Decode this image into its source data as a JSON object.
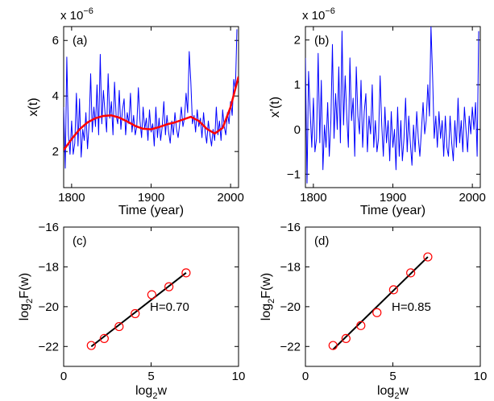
{
  "chart_data": [
    {
      "panel": "(a)",
      "type": "line",
      "xlabel": "Time (year)",
      "ylabel": "x(t)",
      "y_exponent_label": "x 10",
      "y_exponent_power": "−6",
      "xlim": [
        1790,
        2010
      ],
      "ylim": [
        0.7,
        6.5
      ],
      "xticks": [
        1800,
        1900,
        2000
      ],
      "yticks": [
        2,
        4,
        6
      ],
      "colors": {
        "data": "#0000ff",
        "trend": "#ff0000"
      },
      "series": [
        {
          "style": "thin-blue",
          "x": [
            1790,
            1792,
            1794,
            1796,
            1798,
            1800,
            1802,
            1804,
            1806,
            1808,
            1810,
            1812,
            1814,
            1816,
            1818,
            1820,
            1822,
            1824,
            1826,
            1828,
            1830,
            1832,
            1834,
            1836,
            1838,
            1840,
            1842,
            1844,
            1846,
            1848,
            1850,
            1852,
            1854,
            1856,
            1858,
            1860,
            1862,
            1864,
            1866,
            1868,
            1870,
            1872,
            1874,
            1876,
            1878,
            1880,
            1882,
            1884,
            1886,
            1888,
            1890,
            1892,
            1894,
            1896,
            1898,
            1900,
            1902,
            1904,
            1906,
            1908,
            1910,
            1912,
            1914,
            1916,
            1918,
            1920,
            1922,
            1924,
            1926,
            1928,
            1930,
            1932,
            1934,
            1936,
            1938,
            1940,
            1942,
            1944,
            1946,
            1948,
            1950,
            1952,
            1954,
            1956,
            1958,
            1960,
            1962,
            1964,
            1966,
            1968,
            1970,
            1972,
            1974,
            1976,
            1978,
            1980,
            1982,
            1984,
            1986,
            1988,
            1990,
            1992,
            1994,
            1996,
            1998,
            2000,
            2002,
            2004,
            2006,
            2008
          ],
          "y": [
            3.6,
            1.4,
            5.4,
            2.6,
            1.9,
            3.1,
            1.9,
            2.3,
            4.1,
            2.2,
            3.9,
            1.8,
            2.8,
            2.4,
            3.4,
            2.1,
            3.0,
            4.8,
            2.7,
            3.6,
            2.9,
            4.4,
            2.6,
            5.5,
            3.0,
            4.2,
            3.4,
            2.7,
            4.8,
            3.2,
            3.8,
            2.6,
            4.5,
            3.3,
            3.0,
            4.2,
            2.8,
            3.5,
            3.9,
            2.6,
            3.4,
            3.0,
            4.1,
            2.7,
            3.3,
            2.6,
            2.9,
            4.3,
            3.1,
            2.5,
            3.6,
            2.8,
            3.2,
            2.4,
            3.5,
            2.7,
            3.0,
            2.2,
            3.6,
            2.5,
            3.2,
            2.4,
            2.9,
            3.8,
            2.6,
            3.3,
            2.7,
            2.3,
            3.1,
            2.6,
            3.4,
            2.8,
            2.5,
            3.0,
            3.6,
            2.9,
            3.2,
            4.1,
            3.4,
            5.6,
            4.5,
            3.0,
            3.3,
            2.7,
            3.5,
            2.9,
            3.2,
            2.5,
            3.4,
            2.7,
            2.3,
            3.1,
            2.6,
            2.2,
            2.8,
            2.4,
            3.6,
            2.6,
            3.1,
            2.4,
            3.5,
            2.9,
            2.6,
            3.4,
            3.0,
            3.8,
            3.3,
            4.6,
            4.2,
            6.4
          ]
        },
        {
          "style": "thick-red",
          "x": [
            1790,
            1800,
            1810,
            1820,
            1830,
            1840,
            1850,
            1860,
            1870,
            1880,
            1890,
            1900,
            1910,
            1920,
            1930,
            1940,
            1950,
            1960,
            1970,
            1980,
            1990,
            2000,
            2010
          ],
          "y": [
            2.05,
            2.45,
            2.8,
            3.05,
            3.2,
            3.28,
            3.3,
            3.22,
            3.08,
            2.92,
            2.82,
            2.8,
            2.88,
            2.98,
            3.05,
            3.15,
            3.25,
            3.1,
            2.82,
            2.65,
            2.85,
            3.6,
            4.7
          ]
        }
      ]
    },
    {
      "panel": "(b)",
      "type": "line",
      "xlabel": "Time (year)",
      "ylabel": "x'(t)",
      "y_exponent_label": "x 10",
      "y_exponent_power": "−6",
      "xlim": [
        1790,
        2010
      ],
      "ylim": [
        -1.3,
        2.3
      ],
      "xticks": [
        1800,
        1900,
        2000
      ],
      "yticks": [
        -1,
        0,
        1,
        2
      ],
      "colors": {
        "data": "#0000ff"
      },
      "series": [
        {
          "style": "thin-blue",
          "x": [
            1790,
            1792,
            1794,
            1796,
            1798,
            1800,
            1802,
            1804,
            1806,
            1808,
            1810,
            1812,
            1814,
            1816,
            1818,
            1820,
            1822,
            1824,
            1826,
            1828,
            1830,
            1832,
            1834,
            1836,
            1838,
            1840,
            1842,
            1844,
            1846,
            1848,
            1850,
            1852,
            1854,
            1856,
            1858,
            1860,
            1862,
            1864,
            1866,
            1868,
            1870,
            1872,
            1874,
            1876,
            1878,
            1880,
            1882,
            1884,
            1886,
            1888,
            1890,
            1892,
            1894,
            1896,
            1898,
            1900,
            1902,
            1904,
            1906,
            1908,
            1910,
            1912,
            1914,
            1916,
            1918,
            1920,
            1922,
            1924,
            1926,
            1928,
            1930,
            1932,
            1934,
            1936,
            1938,
            1940,
            1942,
            1944,
            1946,
            1948,
            1950,
            1952,
            1954,
            1956,
            1958,
            1960,
            1962,
            1964,
            1966,
            1968,
            1970,
            1972,
            1974,
            1976,
            1978,
            1980,
            1982,
            1984,
            1986,
            1988,
            1990,
            1992,
            1994,
            1996,
            1998,
            2000,
            2002,
            2004,
            2006,
            2008
          ],
          "y": [
            1.6,
            -1.2,
            1.3,
            0.4,
            -0.4,
            0.7,
            -0.5,
            -0.2,
            1.7,
            -0.3,
            1.1,
            -0.9,
            0.1,
            -0.4,
            0.6,
            -0.6,
            0.2,
            1.9,
            -0.2,
            0.8,
            0.0,
            1.4,
            -0.3,
            2.2,
            0.1,
            1.2,
            0.3,
            -0.4,
            1.6,
            0.2,
            0.7,
            -0.6,
            1.4,
            0.3,
            -0.1,
            1.1,
            -0.4,
            0.4,
            0.8,
            -0.5,
            0.3,
            -0.1,
            1.0,
            -0.4,
            0.2,
            -0.5,
            -0.2,
            1.2,
            0.1,
            -0.6,
            0.5,
            -0.3,
            0.2,
            -0.7,
            0.4,
            -0.4,
            0.0,
            -0.9,
            0.5,
            -0.6,
            0.2,
            -0.7,
            -0.2,
            0.7,
            -0.5,
            0.3,
            -0.3,
            -0.8,
            0.1,
            -0.5,
            0.4,
            -0.2,
            -0.6,
            0.0,
            0.6,
            -0.1,
            0.2,
            1.0,
            0.3,
            2.3,
            1.2,
            -0.2,
            0.3,
            -0.4,
            0.4,
            -0.2,
            0.2,
            -0.6,
            0.3,
            -0.4,
            -0.6,
            0.3,
            -0.3,
            -0.7,
            0.2,
            -0.4,
            0.7,
            -0.3,
            0.2,
            -0.5,
            0.5,
            0.0,
            -0.5,
            0.3,
            -0.1,
            0.5,
            0.0,
            0.6,
            -0.6,
            2.2
          ]
        }
      ]
    },
    {
      "panel": "(c)",
      "type": "scatter",
      "xlabel_base": "log",
      "xlabel_sub": "2",
      "xlabel_rest": "w",
      "ylabel_base": "log",
      "ylabel_sub": "2",
      "ylabel_rest": "F(w)",
      "annotation": "H=0.70",
      "xlim": [
        0,
        10
      ],
      "ylim": [
        -23,
        -16
      ],
      "xticks": [
        0,
        5,
        10
      ],
      "yticks": [
        -22,
        -20,
        -18,
        -16
      ],
      "colors": {
        "points": "#ff0000",
        "fit": "#000000"
      },
      "points": {
        "x": [
          1.58,
          2.32,
          3.17,
          4.09,
          5.04,
          6.02,
          7.0
        ],
        "y": [
          -21.95,
          -21.6,
          -21.0,
          -20.35,
          -19.4,
          -19.0,
          -18.3
        ]
      },
      "fit": {
        "x": [
          1.58,
          7.0
        ],
        "y": [
          -22.0,
          -18.3
        ]
      }
    },
    {
      "panel": "(d)",
      "type": "scatter",
      "xlabel_base": "log",
      "xlabel_sub": "2",
      "xlabel_rest": "w",
      "ylabel_base": "log",
      "ylabel_sub": "2",
      "ylabel_rest": "F(w)",
      "annotation": "H=0.85",
      "xlim": [
        0,
        10
      ],
      "ylim": [
        -23,
        -16
      ],
      "xticks": [
        0,
        5,
        10
      ],
      "yticks": [
        -22,
        -20,
        -18,
        -16
      ],
      "colors": {
        "points": "#ff0000",
        "fit": "#000000"
      },
      "points": {
        "x": [
          1.58,
          2.32,
          3.17,
          4.09,
          5.04,
          6.02,
          7.0
        ],
        "y": [
          -21.95,
          -21.6,
          -20.95,
          -20.3,
          -19.15,
          -18.3,
          -17.5
        ]
      },
      "fit": {
        "x": [
          1.58,
          7.0
        ],
        "y": [
          -22.15,
          -17.5
        ]
      }
    }
  ]
}
